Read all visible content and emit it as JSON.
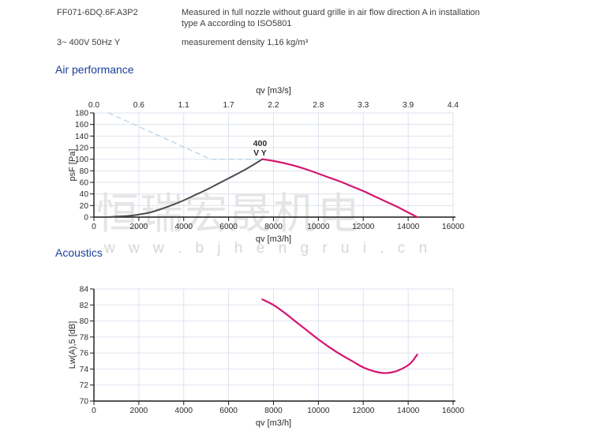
{
  "header": {
    "model": "FF071-6DQ.6F.A3P2",
    "description_line1": "Measured in full nozzle without guard grille in air flow direction A in installation",
    "description_line2": "type A according to ISO5801",
    "power": "3~ 400V 50Hz Y",
    "density": "measurement density 1,16 kg/m³"
  },
  "sections": {
    "air_performance": "Air performance",
    "acoustics": "Acoustics"
  },
  "watermark": {
    "cn": "恒瑞宏晟机电",
    "url": "w w w . b j h e n g r u i . c n"
  },
  "colors": {
    "heading_blue": "#1b3f9b",
    "curve_magenta": "#d6146e",
    "curve_gray": "#4d4d4d",
    "limit_dashed_blue": "#bcd3e8",
    "grid": "#dde2ee",
    "axis": "#1a1a1a"
  },
  "chart_data": [
    {
      "id": "air-performance",
      "type": "line",
      "title": "Air performance",
      "xlabel": "qv [m3/h]",
      "xlabel_top": "qv [m3/s]",
      "ylabel": "psF [Pa]",
      "xlim": [
        0,
        16000
      ],
      "ylim": [
        0,
        180
      ],
      "grid": true,
      "x_ticks": [
        [
          0,
          "0"
        ],
        [
          2000,
          "2000"
        ],
        [
          4000,
          "4000"
        ],
        [
          6000,
          "6000"
        ],
        [
          8000,
          "8000"
        ],
        [
          10000,
          "10000"
        ],
        [
          12000,
          "12000"
        ],
        [
          14000,
          "14000"
        ],
        [
          16000,
          "16000"
        ]
      ],
      "x_ticks_top": [
        [
          0,
          "0.0"
        ],
        [
          2000,
          "0.6"
        ],
        [
          4000,
          "1.1"
        ],
        [
          6000,
          "1.7"
        ],
        [
          8000,
          "2.2"
        ],
        [
          10000,
          "2.8"
        ],
        [
          12000,
          "3.3"
        ],
        [
          14000,
          "3.9"
        ],
        [
          16000,
          "4.4"
        ]
      ],
      "y_ticks": [
        [
          0,
          "0"
        ],
        [
          20,
          "20"
        ],
        [
          40,
          "40"
        ],
        [
          60,
          "60"
        ],
        [
          80,
          "80"
        ],
        [
          100,
          "100"
        ],
        [
          120,
          "120"
        ],
        [
          140,
          "140"
        ],
        [
          160,
          "160"
        ],
        [
          180,
          "180"
        ]
      ],
      "series": [
        {
          "name": "operating-limit-line",
          "color": "#bcd3e8",
          "dash": true,
          "width": 1.3,
          "smooth": false,
          "points": [
            [
              650,
              180
            ],
            [
              5200,
              100
            ],
            [
              7500,
              100
            ]
          ]
        },
        {
          "name": "system-resistance-curve",
          "color": "#4d4d4d",
          "dash": false,
          "width": 2,
          "smooth": true,
          "points": [
            [
              600,
              0
            ],
            [
              1000,
              1
            ],
            [
              1500,
              2
            ],
            [
              2000,
              4.5
            ],
            [
              2500,
              8
            ],
            [
              3000,
              14
            ],
            [
              3500,
              21
            ],
            [
              4000,
              29
            ],
            [
              4500,
              38
            ],
            [
              5000,
              47
            ],
            [
              5500,
              57
            ],
            [
              6000,
              67
            ],
            [
              6500,
              77
            ],
            [
              7000,
              88
            ],
            [
              7500,
              100
            ]
          ]
        },
        {
          "name": "fan-curve-400V",
          "color": "#d6146e",
          "dash": false,
          "width": 2.2,
          "smooth": true,
          "points": [
            [
              7500,
              100
            ],
            [
              8000,
              97
            ],
            [
              8500,
              93
            ],
            [
              9000,
              88
            ],
            [
              9500,
              82
            ],
            [
              10000,
              75
            ],
            [
              10500,
              68
            ],
            [
              11000,
              61
            ],
            [
              11500,
              53
            ],
            [
              12000,
              45
            ],
            [
              12500,
              36
            ],
            [
              13000,
              27
            ],
            [
              13500,
              18
            ],
            [
              14000,
              8
            ],
            [
              14400,
              0
            ]
          ]
        }
      ],
      "annotation": {
        "x": 7400,
        "y": 123,
        "lines": [
          "400",
          "V Y"
        ],
        "color": "#e0246f"
      }
    },
    {
      "id": "acoustics",
      "type": "line",
      "title": "Acoustics",
      "xlabel": "qv [m3/h]",
      "ylabel": "Lw(A),5 [dB]",
      "xlim": [
        0,
        16000
      ],
      "ylim": [
        70,
        84
      ],
      "grid": true,
      "x_ticks": [
        [
          0,
          "0"
        ],
        [
          2000,
          "2000"
        ],
        [
          4000,
          "4000"
        ],
        [
          6000,
          "6000"
        ],
        [
          8000,
          "8000"
        ],
        [
          10000,
          "10000"
        ],
        [
          12000,
          "12000"
        ],
        [
          14000,
          "14000"
        ],
        [
          16000,
          "16000"
        ]
      ],
      "y_ticks": [
        [
          70,
          "70"
        ],
        [
          72,
          "72"
        ],
        [
          74,
          "74"
        ],
        [
          76,
          "76"
        ],
        [
          78,
          "78"
        ],
        [
          80,
          "80"
        ],
        [
          82,
          "82"
        ],
        [
          84,
          "84"
        ]
      ],
      "series": [
        {
          "name": "sound-power-curve",
          "color": "#d6146e",
          "dash": false,
          "width": 2.2,
          "smooth": true,
          "points": [
            [
              7500,
              82.7
            ],
            [
              8000,
              82.0
            ],
            [
              8500,
              81.0
            ],
            [
              9000,
              79.9
            ],
            [
              9500,
              78.8
            ],
            [
              10000,
              77.7
            ],
            [
              10500,
              76.7
            ],
            [
              11000,
              75.8
            ],
            [
              11500,
              75.0
            ],
            [
              12000,
              74.2
            ],
            [
              12500,
              73.7
            ],
            [
              12900,
              73.5
            ],
            [
              13300,
              73.6
            ],
            [
              13700,
              74.0
            ],
            [
              14100,
              74.7
            ],
            [
              14400,
              75.8
            ]
          ]
        }
      ]
    }
  ]
}
